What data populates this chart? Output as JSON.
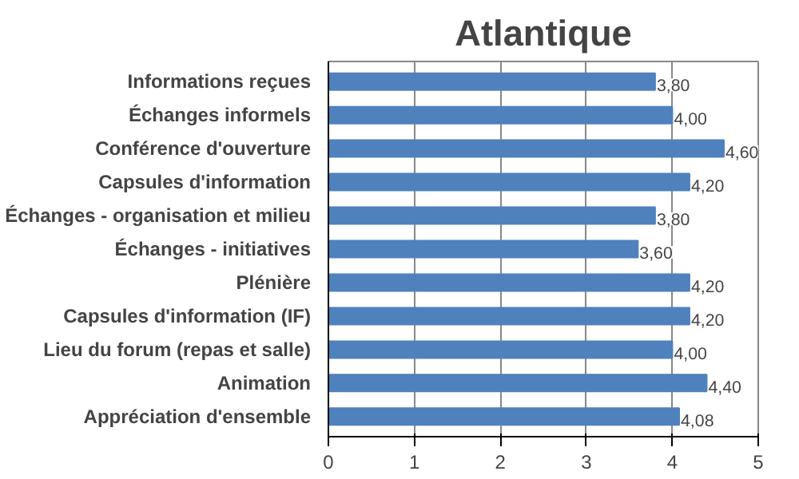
{
  "chart_data": {
    "type": "bar",
    "orientation": "horizontal",
    "title": "Atlantique",
    "categories": [
      "Informations reçues",
      "Échanges informels",
      "Conférence d'ouverture",
      "Capsules d'information",
      "Échanges - organisation et milieu",
      "Échanges - initiatives",
      "Plénière",
      "Capsules d'information (IF)",
      "Lieu du forum (repas et salle)",
      "Animation",
      "Appréciation d'ensemble"
    ],
    "values": [
      3.8,
      4.0,
      4.6,
      4.2,
      3.8,
      3.6,
      4.2,
      4.2,
      4.0,
      4.4,
      4.08
    ],
    "value_labels": [
      "3,80",
      "4,00",
      "4,60",
      "4,20",
      "3,80",
      "3,60",
      "4,20",
      "4,20",
      "4,00",
      "4,40",
      "4,08"
    ],
    "color": "#4f81bd",
    "xlim": [
      0,
      5
    ],
    "xticks": [
      0,
      1,
      2,
      3,
      4,
      5
    ],
    "grid": "x"
  }
}
